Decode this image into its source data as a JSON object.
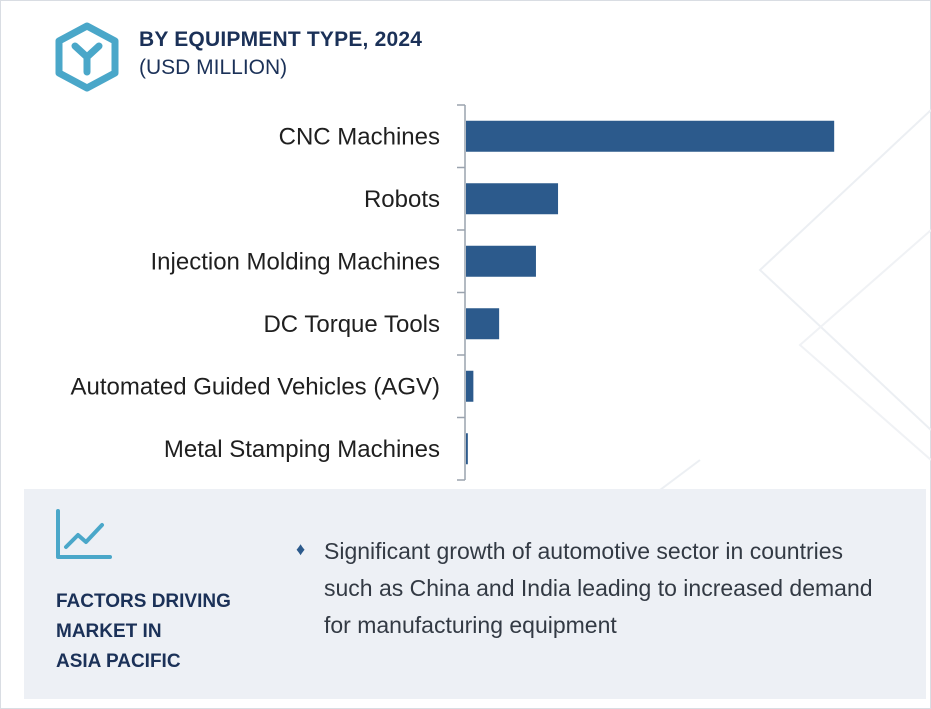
{
  "header": {
    "title": "BY EQUIPMENT TYPE, 2024",
    "subtitle": "(USD MILLION)",
    "logo_icon": "hexagon-y-logo-icon"
  },
  "chart_data": {
    "type": "bar",
    "orientation": "horizontal",
    "title": "BY EQUIPMENT TYPE, 2024",
    "subtitle": "(USD MILLION)",
    "categories": [
      "CNC Machines",
      "Robots",
      "Injection Molding Machines",
      "DC Torque Tools",
      "Automated Guided Vehicles (AGV)",
      "Metal Stamping Machines"
    ],
    "values": [
      100,
      25,
      19,
      9,
      2,
      0.5
    ],
    "xlim": [
      0,
      110
    ],
    "value_axis_labeled": false,
    "grid": false,
    "legend": "none",
    "bar_color": "#2c5a8c"
  },
  "factors": {
    "icon": "line-chart-trend-icon",
    "heading_lines": [
      "FACTORS DRIVING",
      "MARKET IN",
      "ASIA PACIFIC"
    ],
    "bullet_icon": "diamond-bullet-icon",
    "bullet_text": "Significant growth of automotive sector in countries such as China and India leading to increased demand for manufacturing equipment"
  },
  "colors": {
    "accent": "#2c5a8c",
    "logo": "#4aa7c9",
    "heading": "#1b3158",
    "panel_bg": "#edf0f5"
  }
}
